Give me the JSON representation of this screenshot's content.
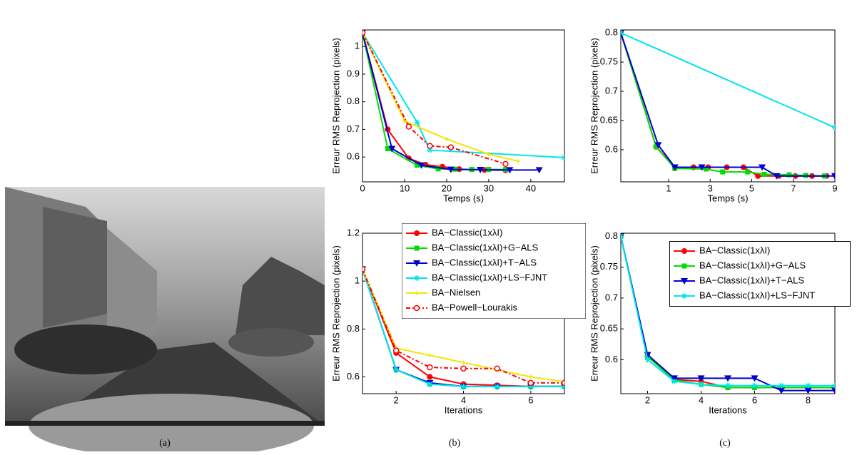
{
  "captions": [
    "(a)",
    "(b)",
    "(c)"
  ],
  "chart_data": [
    {
      "type": "line",
      "xlabel": "Temps (s)",
      "ylabel": "Erreur RMS Reprojection (pixels)",
      "xlim": [
        0,
        48
      ],
      "ylim": [
        0.51,
        1.06
      ],
      "xticks": [
        0,
        10,
        20,
        30,
        40
      ],
      "yticks": [
        0.6,
        0.7,
        0.8,
        0.9,
        {
          "value": 1,
          "label": "1"
        }
      ],
      "series": [
        {
          "name": "BA−Classic(1xλI)",
          "color": "#ff0000",
          "marker": "circle",
          "x": [
            0,
            6,
            11,
            15,
            19,
            23,
            29,
            34
          ],
          "values": [
            1.05,
            0.7,
            0.595,
            0.572,
            0.565,
            0.556,
            0.553,
            0.552
          ]
        },
        {
          "name": "BA−Classic(1xλI)+G−ALS",
          "color": "#00dd00",
          "marker": "square",
          "x": [
            0,
            6,
            13,
            18,
            22,
            26,
            30,
            34
          ],
          "values": [
            1.05,
            0.63,
            0.57,
            0.557,
            0.556,
            0.555,
            0.555,
            0.555
          ]
        },
        {
          "name": "BA−Classic(1xλI)+T−ALS",
          "color": "#0000cc",
          "marker": "triangle-down",
          "x": [
            0,
            7,
            14,
            21,
            28,
            35,
            42
          ],
          "values": [
            1.05,
            0.63,
            0.57,
            0.555,
            0.554,
            0.553,
            0.553
          ]
        },
        {
          "name": "BA−Classic(1xλI)+LS−FJNT",
          "color": "#00e5ee",
          "marker": "star",
          "x": [
            0,
            13,
            16,
            48
          ],
          "values": [
            1.05,
            0.725,
            0.625,
            0.598
          ]
        },
        {
          "name": "BA−Nielsen",
          "color": "#f2e600",
          "marker": "plus",
          "x": [
            0,
            10,
            20,
            30,
            37
          ],
          "values": [
            1.05,
            0.73,
            0.665,
            0.61,
            0.585
          ]
        },
        {
          "name": "BA−Powell−Lourakis",
          "color": "#ff0000",
          "marker": "open-circle",
          "dash": true,
          "x": [
            0,
            11,
            16,
            21,
            34
          ],
          "values": [
            1.05,
            0.71,
            0.64,
            0.635,
            0.575
          ]
        }
      ]
    },
    {
      "type": "line",
      "xlabel": "Temps (s)",
      "ylabel": "Erreur RMS Reprojection (pixels)",
      "xlim": [
        -1.3,
        9
      ],
      "ylim": [
        0.545,
        0.805
      ],
      "xticks": [
        1,
        3,
        5,
        7,
        9
      ],
      "yticks": [
        0.6,
        0.65,
        0.7,
        0.75,
        0.8
      ],
      "series": [
        {
          "name": "BA−Classic(1xλI)",
          "color": "#ff0000",
          "marker": "circle",
          "x": [
            -1.3,
            0.4,
            1.3,
            2.2,
            2.9,
            3.8,
            4.6,
            5.3,
            6.3,
            7.1,
            7.9,
            8.6
          ],
          "values": [
            0.8,
            0.605,
            0.57,
            0.57,
            0.57,
            0.57,
            0.57,
            0.555,
            0.555,
            0.555,
            0.555,
            0.555
          ]
        },
        {
          "name": "BA−Classic(1xλI)+G−ALS",
          "color": "#00dd00",
          "marker": "square",
          "x": [
            -1.3,
            0.4,
            1.3,
            2.8,
            3.6,
            4.8,
            5.6,
            6.8,
            7.6,
            8.5
          ],
          "values": [
            0.8,
            0.605,
            0.568,
            0.567,
            0.562,
            0.562,
            0.558,
            0.557,
            0.556,
            0.555
          ]
        },
        {
          "name": "BA−Classic(1xλI)+T−ALS",
          "color": "#0000cc",
          "marker": "triangle-down",
          "x": [
            -1.3,
            0.5,
            1.3,
            2.6,
            5.5,
            6.2,
            9
          ],
          "values": [
            0.8,
            0.608,
            0.57,
            0.57,
            0.57,
            0.555,
            0.555
          ]
        },
        {
          "name": "BA−Classic(1xλI)+LS−FJNT",
          "color": "#00e5ee",
          "marker": "star",
          "x": [
            -1.3,
            9
          ],
          "values": [
            0.8,
            0.638
          ]
        }
      ]
    },
    {
      "type": "line",
      "xlabel": "Iterations",
      "ylabel": "Erreur RMS Reprojection (pixels)",
      "legend": "upper right",
      "xlim": [
        1,
        7
      ],
      "ylim": [
        0.53,
        1.2
      ],
      "xticks": [
        2,
        4,
        6
      ],
      "yticks": [
        0.6,
        0.8,
        {
          "value": 1,
          "label": "1"
        },
        1.2
      ],
      "x": [
        1,
        2,
        3,
        4,
        5,
        6,
        7
      ],
      "series": [
        {
          "name": "BA−Classic(1xλI)",
          "color": "#ff0000",
          "marker": "circle",
          "values": [
            1.05,
            0.7,
            0.6,
            0.57,
            0.565,
            0.56,
            0.56
          ]
        },
        {
          "name": "BA−Classic(1xλI)+G−ALS",
          "color": "#00dd00",
          "marker": "square",
          "values": [
            1.05,
            0.63,
            0.57,
            0.56,
            0.56,
            0.56,
            0.56
          ]
        },
        {
          "name": "BA−Classic(1xλI)+T−ALS",
          "color": "#0000cc",
          "marker": "triangle-down",
          "values": [
            1.05,
            0.63,
            0.575,
            0.56,
            0.56,
            0.56,
            0.56
          ]
        },
        {
          "name": "BA−Classic(1xλI)+LS−FJNT",
          "color": "#00e5ee",
          "marker": "star",
          "values": [
            1.05,
            0.63,
            0.57,
            0.56,
            0.56,
            0.56,
            0.56
          ]
        },
        {
          "name": "BA−Nielsen",
          "color": "#f2e600",
          "marker": "plus",
          "values": [
            1.05,
            0.72,
            0.69,
            0.66,
            0.63,
            0.6,
            0.58
          ]
        },
        {
          "name": "BA−Powell−Lourakis",
          "color": "#ff0000",
          "marker": "open-circle",
          "dash": true,
          "values": [
            1.05,
            0.71,
            0.64,
            0.635,
            0.635,
            0.575,
            0.575
          ]
        }
      ]
    },
    {
      "type": "line",
      "xlabel": "Iterations",
      "ylabel": "Erreur RMS Reprojection (pixels)",
      "legend": "upper right",
      "xlim": [
        1,
        9
      ],
      "ylim": [
        0.545,
        0.805
      ],
      "xticks": [
        2,
        4,
        6,
        8
      ],
      "yticks": [
        0.6,
        0.65,
        0.7,
        0.75,
        0.8
      ],
      "x": [
        1,
        2,
        3,
        4,
        5,
        6,
        7,
        8,
        9
      ],
      "series": [
        {
          "name": "BA−Classic(1xλI)",
          "color": "#ff0000",
          "marker": "circle",
          "values": [
            0.8,
            0.605,
            0.568,
            0.565,
            0.555,
            0.555,
            0.555,
            0.555,
            0.555
          ]
        },
        {
          "name": "BA−Classic(1xλI)+G−ALS",
          "color": "#00dd00",
          "marker": "square",
          "values": [
            0.8,
            0.605,
            0.567,
            0.56,
            0.555,
            0.555,
            0.555,
            0.555,
            0.555
          ]
        },
        {
          "name": "BA−Classic(1xλI)+T−ALS",
          "color": "#0000cc",
          "marker": "triangle-down",
          "values": [
            0.8,
            0.608,
            0.57,
            0.57,
            0.57,
            0.57,
            0.55,
            0.55,
            0.55
          ]
        },
        {
          "name": "BA−Classic(1xλI)+LS−FJNT",
          "color": "#00e5ee",
          "marker": "star",
          "values": [
            0.8,
            0.6,
            0.565,
            0.56,
            0.558,
            0.558,
            0.558,
            0.558,
            0.558
          ]
        }
      ]
    }
  ]
}
